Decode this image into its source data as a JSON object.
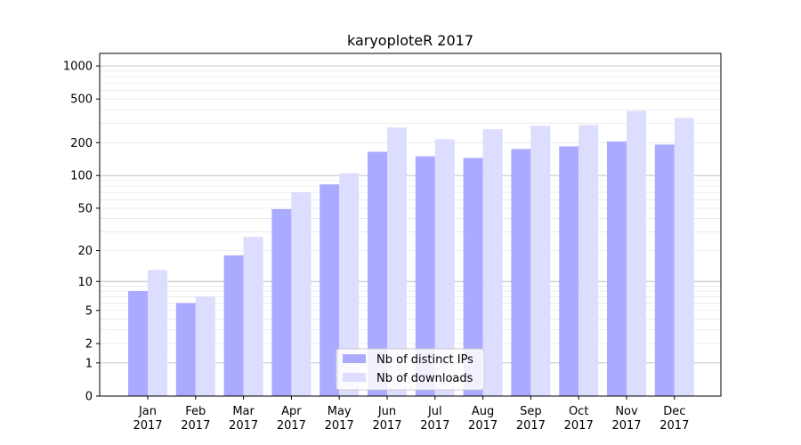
{
  "chart_data": {
    "type": "bar",
    "title": "karyoploteR 2017",
    "xlabel": "",
    "ylabel": "",
    "y_scale": "symlog",
    "ylim": [
      0,
      1300
    ],
    "y_ticks": [
      0,
      1,
      2,
      5,
      10,
      20,
      50,
      100,
      200,
      500,
      1000
    ],
    "categories": [
      {
        "month": "Jan",
        "year": "2017"
      },
      {
        "month": "Feb",
        "year": "2017"
      },
      {
        "month": "Mar",
        "year": "2017"
      },
      {
        "month": "Apr",
        "year": "2017"
      },
      {
        "month": "May",
        "year": "2017"
      },
      {
        "month": "Jun",
        "year": "2017"
      },
      {
        "month": "Jul",
        "year": "2017"
      },
      {
        "month": "Aug",
        "year": "2017"
      },
      {
        "month": "Sep",
        "year": "2017"
      },
      {
        "month": "Oct",
        "year": "2017"
      },
      {
        "month": "Nov",
        "year": "2017"
      },
      {
        "month": "Dec",
        "year": "2017"
      }
    ],
    "series": [
      {
        "name": "Nb of distinct IPs",
        "color": "#aaaaff",
        "values": [
          8,
          6,
          18,
          49,
          83,
          165,
          150,
          145,
          175,
          185,
          205,
          192
        ]
      },
      {
        "name": "Nb of downloads",
        "color": "#ddddff",
        "values": [
          13,
          7,
          27,
          70,
          105,
          275,
          215,
          265,
          285,
          290,
          390,
          335
        ]
      }
    ],
    "grid": "horizontal",
    "legend_position": "lower-center"
  }
}
